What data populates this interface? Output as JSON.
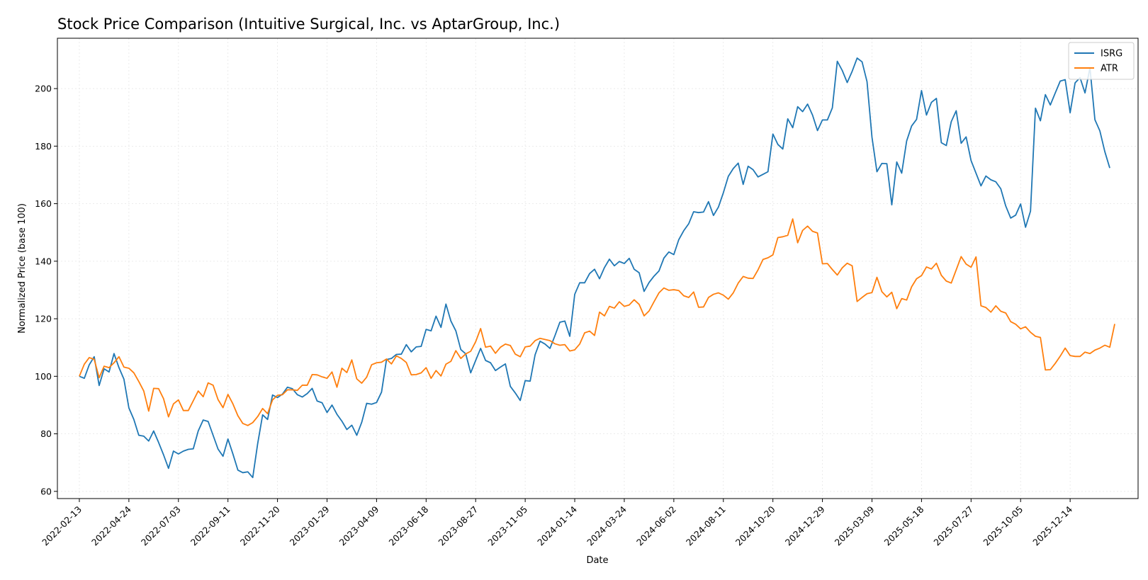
{
  "chart_data": {
    "type": "line",
    "title": "Stock Price Comparison (Intuitive Surgical, Inc. vs AptarGroup, Inc.)",
    "xlabel": "Date",
    "ylabel": "Normalized Price (base 100)",
    "ylim": [
      57.5,
      217.5
    ],
    "xlim": [
      "2022-01-13",
      "2026-03-20"
    ],
    "yticks": [
      60,
      80,
      100,
      120,
      140,
      160,
      180,
      200
    ],
    "xticks": [
      "2022-02-13",
      "2022-04-24",
      "2022-07-03",
      "2022-09-11",
      "2022-11-20",
      "2023-01-29",
      "2023-04-09",
      "2023-06-18",
      "2023-08-27",
      "2023-11-05",
      "2024-01-14",
      "2024-03-24",
      "2024-06-02",
      "2024-08-11",
      "2024-10-20",
      "2024-12-29",
      "2025-03-09",
      "2025-05-18",
      "2025-07-27",
      "2025-10-05",
      "2025-12-14"
    ],
    "grid": true,
    "legend_position": "top-right",
    "start_date": "2022-02-13",
    "interval_days": 7,
    "series": [
      {
        "name": "ISRG",
        "color": "#1f77b4",
        "values": [
          100,
          99.3,
          104,
          106.8,
          96.8,
          102.6,
          101.5,
          107.9,
          103,
          99,
          89,
          85,
          79.5,
          79.2,
          77.5,
          81,
          77,
          72.7,
          68,
          74,
          73,
          74,
          74.6,
          74.8,
          81,
          84.8,
          84.3,
          79.5,
          74.7,
          72.2,
          78.2,
          73,
          67.4,
          66.5,
          66.8,
          64.8,
          76.6,
          86.6,
          85,
          93.5,
          92.6,
          93.8,
          96.2,
          95.7,
          93.6,
          92.8,
          94,
          95.8,
          91.4,
          90.8,
          87.4,
          90,
          86.8,
          84.4,
          81.5,
          83,
          79.5,
          84,
          90.6,
          90.3,
          90.9,
          94.5,
          105.8,
          106.2,
          107.6,
          107.7,
          111,
          108.5,
          110.2,
          110.4,
          116.3,
          115.8,
          120.9,
          117,
          125.1,
          119.2,
          115.8,
          109.3,
          107.8,
          101.2,
          105.5,
          109.7,
          105.5,
          104.7,
          102,
          103.2,
          104.3,
          96.5,
          94.2,
          91.6,
          98.5,
          98.3,
          107.5,
          112.2,
          111.2,
          109.7,
          114.1,
          118.8,
          119.2,
          113.9,
          128.5,
          132.5,
          132.5,
          135.7,
          137.2,
          133.9,
          137.8,
          140.7,
          138.4,
          139.9,
          139.2,
          141,
          137.2,
          136,
          129.5,
          132.6,
          134.8,
          136.6,
          141.1,
          143.2,
          142.3,
          147.5,
          150.6,
          153,
          157.2,
          156.9,
          157.1,
          160.7,
          155.9,
          158.8,
          163.8,
          169.5,
          172.2,
          174.1,
          166.7,
          173,
          171.8,
          169.3,
          170.2,
          171.1,
          184.2,
          180.6,
          179,
          189.5,
          186.4,
          193.7,
          192,
          194.6,
          190.8,
          185.4,
          189.1,
          189.1,
          193.3,
          209.5,
          206.3,
          202.1,
          206,
          210.6,
          209.3,
          202.4,
          183.1,
          171.1,
          174,
          173.9,
          159.6,
          174.5,
          170.6,
          181.8,
          187,
          189.3,
          199.3,
          190.8,
          195.2,
          196.6,
          181.2,
          180.2,
          188.5,
          192.3,
          181,
          183.2,
          175,
          170.6,
          166.2,
          169.6,
          168.3,
          167.6,
          165.2,
          159.2,
          155,
          156,
          159.9,
          151.8,
          157.4,
          193.2,
          188.8,
          197.9,
          194.3,
          198.5,
          202.6,
          203.1,
          191.6,
          202,
          203.8,
          198.5,
          207.2,
          189.2,
          185.3,
          178.1,
          172.4
        ]
      },
      {
        "name": "ATR",
        "color": "#ff7f0e",
        "values": [
          100,
          104.2,
          106.5,
          105.9,
          99.5,
          103.5,
          103,
          104.7,
          106.8,
          103.2,
          102.8,
          101.2,
          98.2,
          94.9,
          87.9,
          95.8,
          95.7,
          92.2,
          85.9,
          90.4,
          91.8,
          88.1,
          88.1,
          91.5,
          94.9,
          92.9,
          97.7,
          96.9,
          91.9,
          89.1,
          93.7,
          90.4,
          86.3,
          83.6,
          82.9,
          83.9,
          86,
          88.8,
          87,
          91.8,
          93.4,
          93.6,
          95.3,
          95.3,
          95.1,
          96.9,
          96.9,
          100.6,
          100.5,
          99.8,
          99.3,
          101.5,
          96.2,
          102.8,
          101.3,
          105.7,
          99.1,
          97.6,
          99.7,
          104,
          104.7,
          104.9,
          106,
          104.3,
          107.1,
          106.2,
          104.8,
          100.5,
          100.6,
          101.2,
          103,
          99.3,
          102,
          100.1,
          104.2,
          105.2,
          108.9,
          106.2,
          107.8,
          108.7,
          112,
          116.6,
          110.1,
          110.5,
          108,
          110.1,
          111.2,
          110.7,
          107.7,
          106.8,
          110.2,
          110.5,
          112.4,
          113.2,
          112.8,
          112.4,
          111.3,
          110.8,
          111,
          108.8,
          109.2,
          111.2,
          115.1,
          115.7,
          114.2,
          122.3,
          121,
          124.3,
          123.7,
          125.9,
          124.3,
          124.8,
          126.6,
          125,
          121,
          122.7,
          125.9,
          129,
          130.7,
          129.9,
          130.1,
          129.8,
          128,
          127.4,
          129.3,
          124,
          124.1,
          127.4,
          128.5,
          129,
          128.2,
          126.8,
          129,
          132.4,
          134.7,
          134.1,
          134,
          137,
          140.6,
          141.2,
          142.2,
          148.2,
          148.5,
          149,
          154.7,
          146.4,
          150.7,
          152.2,
          150.4,
          149.8,
          139.1,
          139.2,
          137.1,
          135.2,
          137.7,
          139.3,
          138.4,
          126,
          127.4,
          128.7,
          129.1,
          134.4,
          129.4,
          127.6,
          129.2,
          123.5,
          127,
          126.5,
          131.1,
          133.9,
          135,
          138,
          137.3,
          139.3,
          135.1,
          133.1,
          132.4,
          137,
          141.6,
          139,
          137.9,
          141.5,
          124.5,
          123.9,
          122.3,
          124.5,
          122.6,
          122,
          119,
          118.1,
          116.5,
          117.2,
          115.3,
          113.9,
          113.5,
          102.2,
          102.3,
          104.5,
          107,
          109.8,
          107.2,
          106.9,
          106.9,
          108.4,
          107.9,
          109.1,
          109.8,
          110.8,
          110.1,
          118.2
        ]
      }
    ]
  }
}
